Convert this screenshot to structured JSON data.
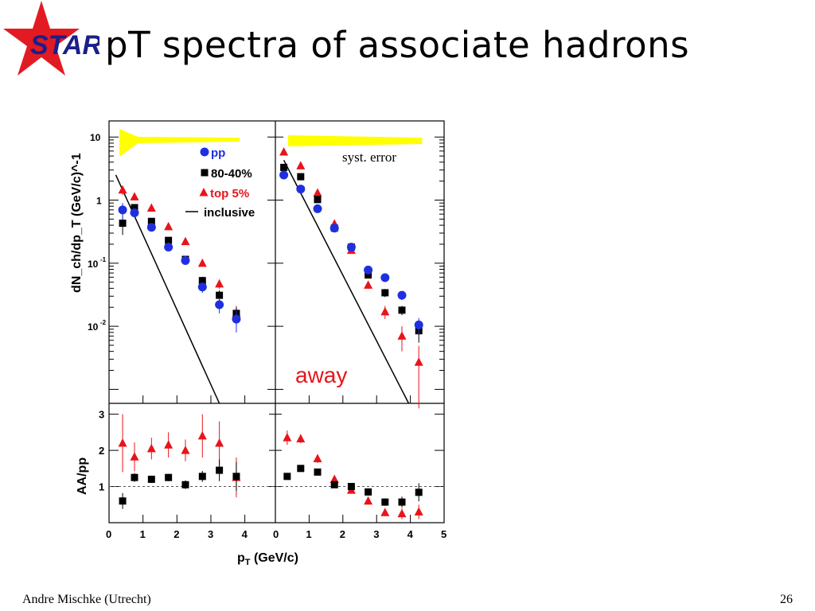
{
  "slide": {
    "title": "pT spectra of associate hadrons",
    "logo_text": "STAR",
    "footer_author": "Andre Mischke (Utrecht)",
    "page_number": "26"
  },
  "colors": {
    "pp": "#1f2fe0",
    "central": "#e8141a",
    "peripheral": "#000000",
    "syst_band": "#ffff00",
    "logo_star": "#e21b22",
    "logo_text": "#1a1f8a"
  },
  "chart_data": {
    "type": "scatter",
    "xlabel_main": "p",
    "xlabel_sub": "T",
    "xlabel_rest": " (GeV/c)",
    "ylabel_top": "dN_ch/dp_T (GeV/c)^-1",
    "ylabel_bottom": "AA/pp",
    "legend": {
      "pp": "pp",
      "per": "80-40%",
      "cen": "top 5%",
      "inc": "inclusive"
    },
    "annotations": {
      "syst": "syst. error",
      "away": "away"
    },
    "ylog_range": [
      0.0006,
      18
    ],
    "yratio_range": [
      0,
      3.3
    ],
    "left_xticks": [
      "0",
      "1",
      "2",
      "3",
      "4"
    ],
    "right_xticks": [
      "0",
      "1",
      "2",
      "3",
      "4",
      "5"
    ],
    "ytick_labels_top": {
      "t10": "10",
      "t1": "1",
      "t01b": "10",
      "t01e": "-1",
      "t001b": "10",
      "t001e": "-2"
    },
    "ytick_labels_bottom": [
      "1",
      "2",
      "3"
    ],
    "near": {
      "pp": [
        [
          0.4,
          0.7,
          0.2
        ],
        [
          0.75,
          0.63,
          0.06
        ],
        [
          1.25,
          0.37,
          0.04
        ],
        [
          1.75,
          0.18,
          0.02
        ],
        [
          2.25,
          0.11,
          0.01
        ],
        [
          2.75,
          0.042,
          0.008
        ],
        [
          3.25,
          0.022,
          0.006
        ],
        [
          3.75,
          0.013,
          0.005
        ]
      ],
      "per": [
        [
          0.4,
          0.43,
          0.15
        ],
        [
          0.75,
          0.76,
          0.08
        ],
        [
          1.25,
          0.46,
          0.04
        ],
        [
          1.75,
          0.23,
          0.02
        ],
        [
          2.25,
          0.115,
          0.01
        ],
        [
          2.75,
          0.053,
          0.008
        ],
        [
          3.25,
          0.031,
          0.006
        ],
        [
          3.75,
          0.016,
          0.004
        ]
      ],
      "cen": [
        [
          0.4,
          1.45,
          0.25
        ],
        [
          0.75,
          1.13,
          0.1
        ],
        [
          1.25,
          0.75,
          0.06
        ],
        [
          1.75,
          0.38,
          0.03
        ],
        [
          2.25,
          0.22,
          0.015
        ],
        [
          2.75,
          0.1,
          0.01
        ],
        [
          3.25,
          0.047,
          0.008
        ],
        [
          3.75,
          0.016,
          0.005
        ]
      ],
      "inc": [
        [
          0.2,
          2.5
        ],
        [
          3.25,
          0.0005
        ]
      ],
      "ratio_per": [
        [
          0.4,
          0.6,
          0.22
        ],
        [
          0.75,
          1.25,
          0.12
        ],
        [
          1.25,
          1.2,
          0.1
        ],
        [
          1.75,
          1.25,
          0.1
        ],
        [
          2.25,
          1.05,
          0.12
        ],
        [
          2.75,
          1.28,
          0.15
        ],
        [
          3.25,
          1.45,
          0.3
        ],
        [
          3.75,
          1.28,
          0.4
        ]
      ],
      "ratio_cen": [
        [
          0.4,
          2.2,
          0.8
        ],
        [
          0.75,
          1.82,
          0.4
        ],
        [
          1.25,
          2.05,
          0.3
        ],
        [
          1.75,
          2.15,
          0.35
        ],
        [
          2.25,
          2.0,
          0.3
        ],
        [
          2.75,
          2.4,
          0.6
        ],
        [
          3.25,
          2.2,
          0.6
        ],
        [
          3.75,
          1.25,
          0.55
        ]
      ]
    },
    "away": {
      "pp": [
        [
          0.25,
          2.5,
          0.3
        ],
        [
          0.75,
          1.5,
          0.15
        ],
        [
          1.25,
          0.73,
          0.07
        ],
        [
          1.75,
          0.36,
          0.03
        ],
        [
          2.25,
          0.18,
          0.015
        ],
        [
          2.75,
          0.078,
          0.008
        ],
        [
          3.25,
          0.059,
          0.006
        ],
        [
          3.75,
          0.031,
          0.005
        ],
        [
          4.25,
          0.0105,
          0.003
        ]
      ],
      "per": [
        [
          0.25,
          3.3,
          0.3
        ],
        [
          0.75,
          2.35,
          0.2
        ],
        [
          1.25,
          1.02,
          0.08
        ],
        [
          1.75,
          0.36,
          0.03
        ],
        [
          2.25,
          0.18,
          0.015
        ],
        [
          2.75,
          0.065,
          0.007
        ],
        [
          3.25,
          0.034,
          0.005
        ],
        [
          3.75,
          0.018,
          0.003
        ],
        [
          4.25,
          0.0085,
          0.003
        ]
      ],
      "cen": [
        [
          0.25,
          5.8,
          0.5
        ],
        [
          0.75,
          3.5,
          0.25
        ],
        [
          1.25,
          1.3,
          0.1
        ],
        [
          1.75,
          0.42,
          0.04
        ],
        [
          2.25,
          0.16,
          0.015
        ],
        [
          2.75,
          0.045,
          0.006
        ],
        [
          3.25,
          0.017,
          0.004
        ],
        [
          3.75,
          0.007,
          0.003
        ],
        [
          4.25,
          0.0027,
          0.0022
        ]
      ],
      "inc": [
        [
          0.25,
          4.3
        ],
        [
          3.95,
          0.0005
        ]
      ],
      "ratio_per": [
        [
          0.35,
          1.28,
          0.08
        ],
        [
          0.75,
          1.5,
          0.08
        ],
        [
          1.25,
          1.4,
          0.08
        ],
        [
          1.75,
          1.05,
          0.08
        ],
        [
          2.25,
          1.0,
          0.08
        ],
        [
          2.75,
          0.85,
          0.1
        ],
        [
          3.25,
          0.57,
          0.1
        ],
        [
          3.75,
          0.57,
          0.15
        ],
        [
          4.25,
          0.84,
          0.25
        ]
      ],
      "ratio_cen": [
        [
          0.35,
          2.35,
          0.2
        ],
        [
          0.75,
          2.32,
          0.12
        ],
        [
          1.25,
          1.77,
          0.12
        ],
        [
          1.75,
          1.2,
          0.1
        ],
        [
          2.25,
          0.9,
          0.1
        ],
        [
          2.75,
          0.6,
          0.1
        ],
        [
          3.25,
          0.28,
          0.1
        ],
        [
          3.75,
          0.25,
          0.15
        ],
        [
          4.25,
          0.3,
          0.2
        ]
      ]
    }
  }
}
